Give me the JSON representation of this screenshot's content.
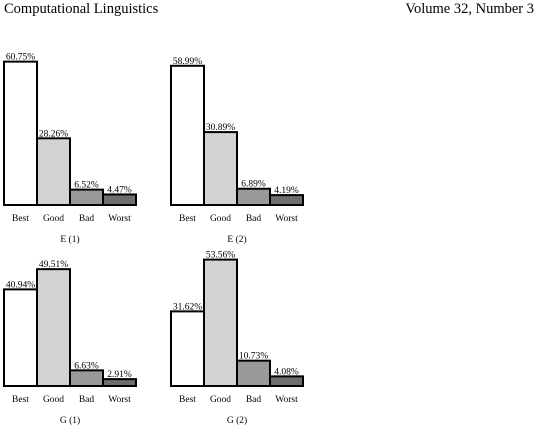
{
  "header": {
    "journal": "Computational Linguistics",
    "volume": "Volume 32, Number 3"
  },
  "colors": {
    "Best": "#ffffff",
    "Good": "#d3d3d3",
    "Bad": "#999999",
    "Worst": "#6e6e6e",
    "stroke": "#000000"
  },
  "chart_data": [
    {
      "type": "bar",
      "title": "E (1)",
      "categories": [
        "Best",
        "Good",
        "Bad",
        "Worst"
      ],
      "values": [
        60.75,
        28.26,
        6.52,
        4.47
      ],
      "value_labels": [
        "60.75%",
        "28.26%",
        "6.52%",
        "4.47%"
      ],
      "xlabel": "",
      "ylabel": "",
      "ylim": [
        0,
        62
      ],
      "grid": false,
      "legend": "none"
    },
    {
      "type": "bar",
      "title": "E (2)",
      "categories": [
        "Best",
        "Good",
        "Bad",
        "Worst"
      ],
      "values": [
        58.99,
        30.89,
        6.89,
        4.19
      ],
      "value_labels": [
        "58.99%",
        "30.89%",
        "6.89%",
        "4.19%"
      ],
      "xlabel": "",
      "ylabel": "",
      "ylim": [
        0,
        62
      ],
      "grid": false,
      "legend": "none"
    },
    {
      "type": "bar",
      "title": "G (1)",
      "categories": [
        "Best",
        "Good",
        "Bad",
        "Worst"
      ],
      "values": [
        40.94,
        49.51,
        6.63,
        2.91
      ],
      "value_labels": [
        "40.94%",
        "49.51%",
        "6.63%",
        "2.91%"
      ],
      "xlabel": "",
      "ylabel": "",
      "ylim": [
        0,
        62
      ],
      "grid": false,
      "legend": "none"
    },
    {
      "type": "bar",
      "title": "G (2)",
      "categories": [
        "Best",
        "Good",
        "Bad",
        "Worst"
      ],
      "values": [
        31.62,
        53.56,
        10.73,
        4.08
      ],
      "value_labels": [
        "31.62%",
        "53.56%",
        "10.73%",
        "4.08%"
      ],
      "xlabel": "",
      "ylabel": "",
      "ylim": [
        0,
        62
      ],
      "grid": false,
      "legend": "none"
    }
  ]
}
